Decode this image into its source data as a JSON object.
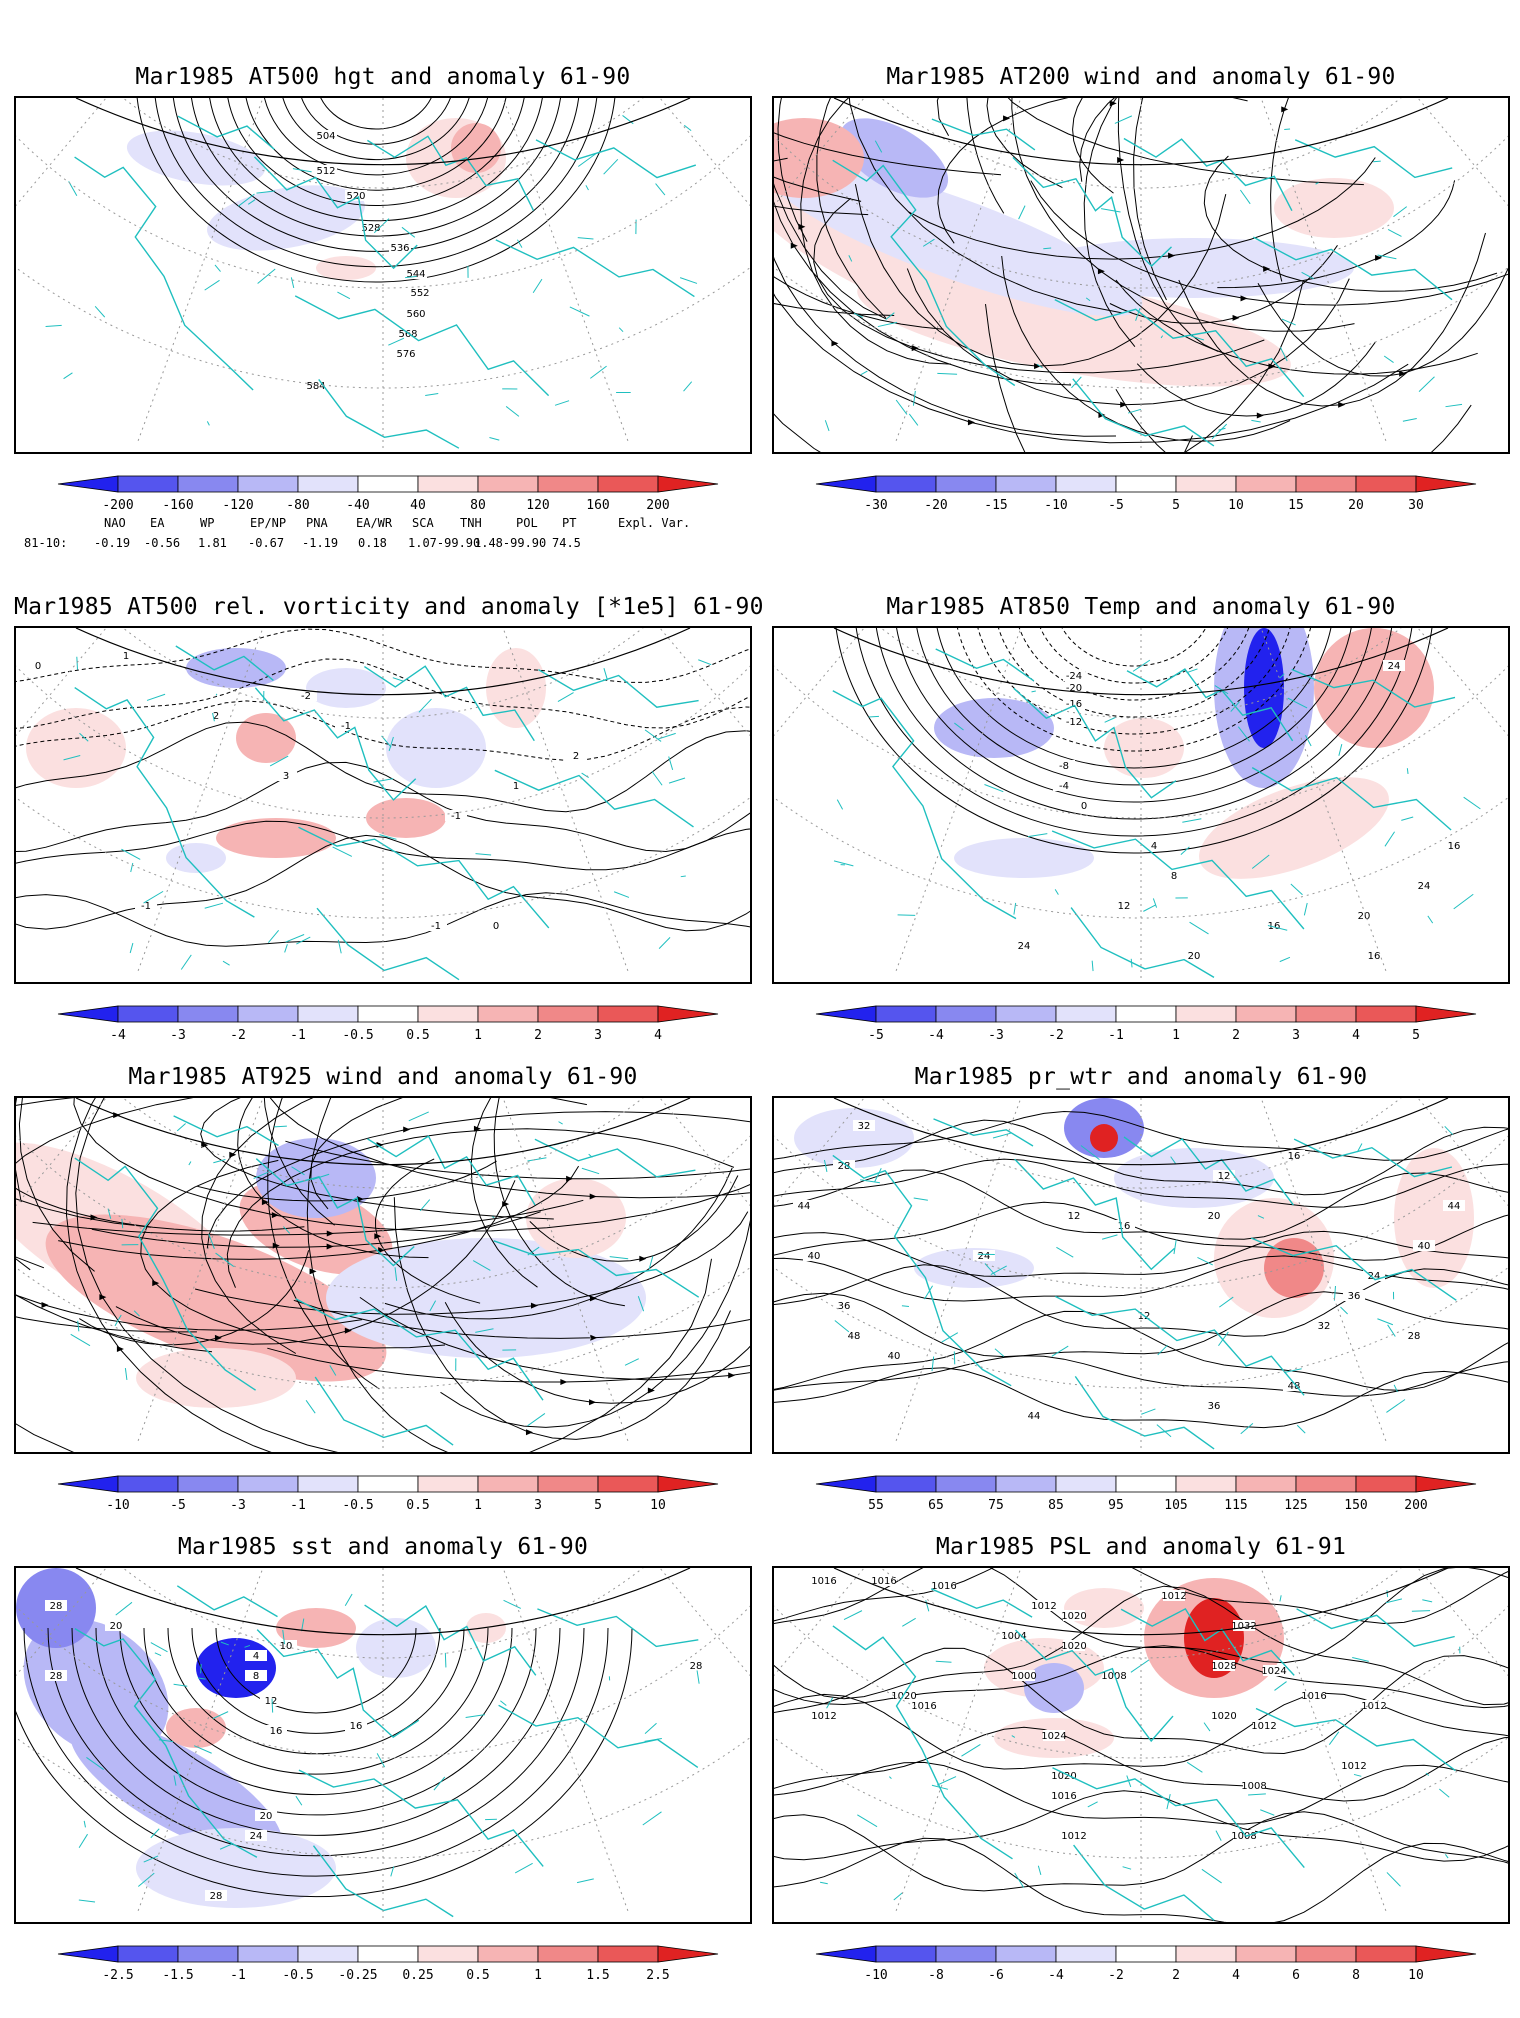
{
  "panels": [
    {
      "title": "Mar1985 AT500 hgt and anomaly 61-90",
      "contour_labels": [
        "504",
        "512",
        "520",
        "528",
        "536",
        "544",
        "552",
        "560",
        "568",
        "576",
        "584"
      ],
      "colorbar_ticks": [
        "-200",
        "-160",
        "-120",
        "-80",
        "-40",
        "40",
        "80",
        "120",
        "160",
        "200"
      ],
      "colorbar_colors": [
        "#2222ee",
        "#5555ee",
        "#8888f0",
        "#b8b8f6",
        "#e2e2fb",
        "#ffffff",
        "#fbe0e0",
        "#f6b4b4",
        "#f08888",
        "#ea5858",
        "#e02222"
      ]
    },
    {
      "title": "Mar1985 AT200 wind and anomaly 61-90",
      "contour_labels": [],
      "colorbar_ticks": [
        "-30",
        "-20",
        "-15",
        "-10",
        "-5",
        "5",
        "10",
        "15",
        "20",
        "30"
      ],
      "colorbar_colors": [
        "#2222ee",
        "#5555ee",
        "#8888f0",
        "#b8b8f6",
        "#e2e2fb",
        "#ffffff",
        "#fbe0e0",
        "#f6b4b4",
        "#f08888",
        "#ea5858",
        "#e02222"
      ]
    },
    {
      "title": "Mar1985 AT500 rel. vorticity and anomaly [*1e5] 61-90",
      "contour_labels": [
        "0",
        "1",
        "2",
        "3",
        "-1",
        "-2",
        "-1",
        "1",
        "2",
        "-1",
        "-1",
        "0"
      ],
      "colorbar_ticks": [
        "-4",
        "-3",
        "-2",
        "-1",
        "-0.5",
        "0.5",
        "1",
        "2",
        "3",
        "4"
      ],
      "colorbar_colors": [
        "#2222ee",
        "#5555ee",
        "#8888f0",
        "#b8b8f6",
        "#e2e2fb",
        "#ffffff",
        "#fbe0e0",
        "#f6b4b4",
        "#f08888",
        "#ea5858",
        "#e02222"
      ]
    },
    {
      "title": "Mar1985 AT850 Temp and anomaly 61-90",
      "contour_labels": [
        "24",
        "-24",
        "-20",
        "-16",
        "-12",
        "-8",
        "-4",
        "0",
        "4",
        "8",
        "12",
        "16",
        "20",
        "24",
        "16",
        "24",
        "20",
        "16"
      ],
      "colorbar_ticks": [
        "-5",
        "-4",
        "-3",
        "-2",
        "-1",
        "1",
        "2",
        "3",
        "4",
        "5"
      ],
      "colorbar_colors": [
        "#2222ee",
        "#5555ee",
        "#8888f0",
        "#b8b8f6",
        "#e2e2fb",
        "#ffffff",
        "#fbe0e0",
        "#f6b4b4",
        "#f08888",
        "#ea5858",
        "#e02222"
      ]
    },
    {
      "title": "Mar1985 AT925 wind and anomaly 61-90",
      "contour_labels": [],
      "colorbar_ticks": [
        "-10",
        "-5",
        "-3",
        "-1",
        "-0.5",
        "0.5",
        "1",
        "3",
        "5",
        "10"
      ],
      "colorbar_colors": [
        "#2222ee",
        "#5555ee",
        "#8888f0",
        "#b8b8f6",
        "#e2e2fb",
        "#ffffff",
        "#fbe0e0",
        "#f6b4b4",
        "#f08888",
        "#ea5858",
        "#e02222"
      ]
    },
    {
      "title": "Mar1985 pr_wtr and anomaly 61-90",
      "contour_labels": [
        "32",
        "28",
        "44",
        "40",
        "36",
        "12",
        "16",
        "24",
        "12",
        "20",
        "12",
        "16",
        "40",
        "44",
        "36",
        "28",
        "24",
        "32",
        "48",
        "36",
        "44",
        "40",
        "48",
        "16"
      ],
      "colorbar_ticks": [
        "55",
        "65",
        "75",
        "85",
        "95",
        "105",
        "115",
        "125",
        "150",
        "200"
      ],
      "colorbar_colors": [
        "#2222ee",
        "#5555ee",
        "#8888f0",
        "#b8b8f6",
        "#e2e2fb",
        "#ffffff",
        "#fbe0e0",
        "#f6b4b4",
        "#f08888",
        "#ea5858",
        "#e02222"
      ]
    },
    {
      "title": "Mar1985 sst and anomaly 61-90",
      "contour_labels": [
        "28",
        "28",
        "20",
        "10",
        "4",
        "8",
        "12",
        "16",
        "20",
        "24",
        "28",
        "16",
        "28"
      ],
      "colorbar_ticks": [
        "-2.5",
        "-1.5",
        "-1",
        "-0.5",
        "-0.25",
        "0.25",
        "0.5",
        "1",
        "1.5",
        "2.5"
      ],
      "colorbar_colors": [
        "#2222ee",
        "#5555ee",
        "#8888f0",
        "#b8b8f6",
        "#e2e2fb",
        "#ffffff",
        "#fbe0e0",
        "#f6b4b4",
        "#f08888",
        "#ea5858",
        "#e02222"
      ]
    },
    {
      "title": "Mar1985 PSL and anomaly 61-91",
      "contour_labels": [
        "1016",
        "1016",
        "1016",
        "1012",
        "1020",
        "1004",
        "1020",
        "1000",
        "1008",
        "1012",
        "1032",
        "1028",
        "1024",
        "1016",
        "1020",
        "1020",
        "1016",
        "1024",
        "1020",
        "1016",
        "1012",
        "1012",
        "1012",
        "1012",
        "1008",
        "1008",
        "1012"
      ],
      "colorbar_ticks": [
        "-10",
        "-8",
        "-6",
        "-4",
        "-2",
        "2",
        "4",
        "6",
        "8",
        "10"
      ],
      "colorbar_colors": [
        "#2222ee",
        "#5555ee",
        "#8888f0",
        "#b8b8f6",
        "#e2e2fb",
        "#ffffff",
        "#fbe0e0",
        "#f6b4b4",
        "#f08888",
        "#ea5858",
        "#e02222"
      ]
    }
  ],
  "teleconnection_indices": {
    "headers": [
      "NAO",
      "EA",
      "WP",
      "EP/NP",
      "PNA",
      "EA/WR",
      "SCA",
      "TNH",
      "POL",
      "PT",
      "Expl. Var."
    ],
    "row_label": "81-10:",
    "values": [
      "-0.19",
      "-0.56",
      "1.81",
      "-0.67",
      "-1.19",
      "0.18",
      "1.07-99.90",
      "1.48-99.90",
      "74.5"
    ]
  }
}
